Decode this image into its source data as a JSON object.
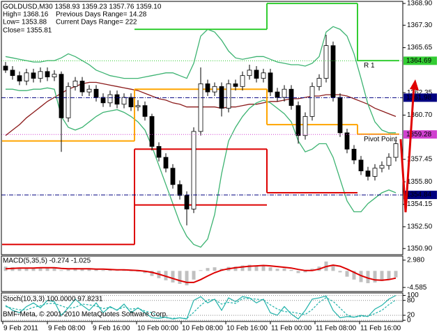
{
  "chart_data": [
    {
      "type": "candlestick",
      "title": "GOLDUSD,M30  1358.93 1359.23 1357.76 1359.10",
      "info": [
        "High= 1368.16",
        "Low= 1353.88",
        "Close= 1355.81",
        "Previous Days Range= 14.28",
        "Current Days Range= 222"
      ],
      "open": [
        1364.3,
        1364.0,
        1363.6,
        1363.2,
        1363.8,
        1363.4,
        1363.9,
        1363.5,
        1363.7,
        1360.5,
        1362.8,
        1363.2,
        1362.4,
        1362.6,
        1362.0,
        1361.6,
        1362.2,
        1361.5,
        1362.0,
        1361.3,
        1361.4,
        1360.6,
        1358.4,
        1357.6,
        1356.8,
        1355.6,
        1354.8,
        1353.8,
        1359.5,
        1363.0,
        1362.4,
        1362.8,
        1361.2,
        1363.0,
        1362.8,
        1363.6,
        1364.0,
        1363.4,
        1363.8,
        1362.4,
        1362.0,
        1362.6,
        1361.4,
        1359.2,
        1360.6,
        1362.8,
        1363.4,
        1365.8,
        1362.0,
        1359.4,
        1358.2,
        1357.4,
        1356.6,
        1356.2,
        1356.8,
        1357.0,
        1357.6
      ],
      "high": [
        1364.6,
        1364.3,
        1363.9,
        1364.1,
        1364.1,
        1364.2,
        1364.2,
        1364.0,
        1363.9,
        1363.1,
        1363.5,
        1363.5,
        1362.9,
        1362.9,
        1362.3,
        1362.5,
        1362.5,
        1362.3,
        1362.3,
        1361.8,
        1361.7,
        1360.8,
        1358.7,
        1357.9,
        1357.1,
        1355.9,
        1355.1,
        1359.8,
        1364.2,
        1363.3,
        1363.1,
        1363.1,
        1363.3,
        1363.3,
        1363.9,
        1364.4,
        1364.3,
        1364.1,
        1364.1,
        1362.7,
        1362.9,
        1362.9,
        1361.7,
        1360.9,
        1363.1,
        1363.7,
        1366.6,
        1366.1,
        1362.3,
        1359.7,
        1358.5,
        1357.7,
        1356.9,
        1357.1,
        1357.3,
        1357.9,
        1358.9
      ],
      "low": [
        1363.8,
        1363.3,
        1362.9,
        1362.9,
        1363.1,
        1363.1,
        1363.2,
        1363.2,
        1358.0,
        1360.2,
        1362.5,
        1362.1,
        1362.1,
        1361.7,
        1361.3,
        1361.3,
        1361.2,
        1361.2,
        1361.0,
        1361.0,
        1360.3,
        1358.1,
        1357.3,
        1356.5,
        1355.3,
        1354.5,
        1352.6,
        1353.5,
        1359.2,
        1362.1,
        1362.1,
        1360.6,
        1360.9,
        1362.5,
        1362.5,
        1363.3,
        1363.1,
        1363.1,
        1362.1,
        1361.7,
        1361.7,
        1361.1,
        1358.6,
        1358.9,
        1360.3,
        1362.5,
        1363.1,
        1361.7,
        1359.1,
        1357.9,
        1357.1,
        1356.3,
        1355.9,
        1355.9,
        1356.5,
        1356.7,
        1357.3
      ],
      "close": [
        1364.0,
        1363.6,
        1363.2,
        1363.8,
        1363.4,
        1363.9,
        1363.5,
        1363.7,
        1360.5,
        1362.8,
        1363.2,
        1362.4,
        1362.6,
        1362.0,
        1361.6,
        1362.2,
        1361.5,
        1362.0,
        1361.3,
        1361.4,
        1360.6,
        1358.4,
        1357.6,
        1356.8,
        1355.6,
        1354.8,
        1353.8,
        1359.5,
        1363.0,
        1362.4,
        1362.8,
        1361.2,
        1363.0,
        1362.8,
        1363.6,
        1364.0,
        1363.4,
        1363.8,
        1362.4,
        1362.0,
        1362.6,
        1361.4,
        1359.2,
        1360.6,
        1362.8,
        1363.4,
        1365.8,
        1362.0,
        1359.4,
        1358.2,
        1357.4,
        1356.6,
        1356.2,
        1356.8,
        1357.0,
        1357.6,
        1358.6
      ],
      "up_color": "#ffffff",
      "down_color": "#000000",
      "xlim": [
        -0.6,
        56.9
      ],
      "xticks": [
        {
          "value": -0.4,
          "label": "9 Feb 2011"
        },
        {
          "value": 6.0,
          "label": "9 Feb 08:00"
        },
        {
          "value": 12.4,
          "label": "9 Feb 16:00"
        },
        {
          "value": 18.8,
          "label": "10 Feb 00:00"
        },
        {
          "value": 25.2,
          "label": "10 Feb 08:00"
        },
        {
          "value": 31.6,
          "label": "10 Feb 16:00"
        },
        {
          "value": 38.0,
          "label": "11 Feb 00:00"
        },
        {
          "value": 44.4,
          "label": "11 Feb 08:00"
        },
        {
          "value": 50.8,
          "label": "11 Feb 16:00"
        }
      ],
      "ylim": [
        1350.45,
        1369.05
      ],
      "yticks": [
        {
          "value": 1368.9,
          "label": "1368.90"
        },
        {
          "value": 1367.3,
          "label": "1367.30"
        },
        1365.65,
        1362.35,
        {
          "value": 1360.7,
          "label": "1360.70"
        },
        1357.45,
        {
          "value": 1355.8,
          "label": "1355.80"
        },
        1354.15,
        {
          "value": 1352.5,
          "label": "1352.50"
        },
        {
          "value": 1350.9,
          "label": "1350.90"
        }
      ],
      "grid": false,
      "series": [
        {
          "color": "#8b1a1a",
          "style": "solid",
          "values": [
            1359.2,
            1359.6,
            1360.0,
            1360.5,
            1360.9,
            1361.3,
            1361.7,
            1362.0,
            1362.3,
            1362.6,
            1362.8,
            1363.0,
            1363.1,
            1363.1,
            1363.0,
            1362.9,
            1362.8,
            1362.7,
            1362.6,
            1362.5,
            1362.3,
            1362.1,
            1361.9,
            1361.8,
            1361.6,
            1361.5,
            1361.3,
            1361.3,
            1361.3,
            1361.3,
            1361.3,
            1361.2,
            1361.3,
            1361.3,
            1361.4,
            1361.5,
            1361.5,
            1361.6,
            1361.7,
            1361.7,
            1361.8,
            1361.9,
            1361.9,
            1362.0,
            1362.1,
            1362.1,
            1362.2,
            1362.2,
            1362.2,
            1362.1,
            1361.9,
            1361.7,
            1361.5,
            1361.2,
            1361.0,
            1360.8,
            1360.6
          ]
        },
        {
          "color": "#3cb371",
          "style": "solid",
          "values": [
            1365.0,
            1364.9,
            1364.8,
            1364.7,
            1364.6,
            1364.6,
            1364.7,
            1364.7,
            1364.9,
            1365.2,
            1365.0,
            1364.7,
            1364.4,
            1364.0,
            1363.8,
            1363.6,
            1363.5,
            1363.4,
            1363.4,
            1363.4,
            1363.5,
            1363.6,
            1363.7,
            1363.8,
            1363.8,
            1363.6,
            1363.4,
            1364.5,
            1366.5,
            1367.0,
            1366.8,
            1366.2,
            1365.4,
            1364.9,
            1364.8,
            1364.9,
            1365.0,
            1365.0,
            1364.8,
            1364.6,
            1364.5,
            1364.4,
            1364.4,
            1364.3,
            1364.5,
            1365.0,
            1366.8,
            1367.2,
            1367.0,
            1366.5,
            1365.2,
            1363.4,
            1361.5,
            1360.2,
            1359.6,
            1359.4,
            1359.4
          ]
        },
        {
          "color": "#3cb371",
          "style": "solid",
          "values": [
            1362.6,
            1362.6,
            1362.5,
            1362.5,
            1362.6,
            1362.6,
            1362.7,
            1362.6,
            1360.6,
            1359.8,
            1359.6,
            1359.8,
            1360.2,
            1360.6,
            1360.9,
            1361.0,
            1361.1,
            1360.9,
            1360.6,
            1360.2,
            1359.6,
            1358.4,
            1357.0,
            1355.6,
            1354.2,
            1352.8,
            1351.8,
            1351.2,
            1351.0,
            1351.6,
            1353.4,
            1356.4,
            1358.8,
            1359.8,
            1360.6,
            1361.2,
            1361.6,
            1361.8,
            1361.6,
            1361.2,
            1360.8,
            1360.2,
            1358.8,
            1358.0,
            1358.2,
            1358.6,
            1358.6,
            1357.6,
            1356.0,
            1354.4,
            1353.6,
            1353.6,
            1354.2,
            1354.6,
            1355.0,
            1355.2,
            1355.0
          ]
        },
        {
          "color": "#ffa500",
          "style": "step",
          "values": [
            1358.8,
            1358.8,
            1358.8,
            1358.8,
            1358.8,
            1358.8,
            1358.8,
            1358.8,
            1358.8,
            1358.8,
            1358.8,
            1358.8,
            1358.8,
            1358.8,
            1358.8,
            1358.8,
            1358.8,
            1358.8,
            1358.8,
            1362.6,
            1362.6,
            1362.6,
            1362.6,
            1362.6,
            1362.6,
            1362.6,
            1362.6,
            1362.6,
            1362.6,
            1362.6,
            1362.6,
            1362.6,
            1362.6,
            1362.6,
            1362.6,
            1362.6,
            1362.6,
            1362.6,
            1360.0,
            1360.0,
            1360.0,
            1360.0,
            1360.0,
            1360.0,
            1360.0,
            1360.0,
            1360.0,
            1360.0,
            1360.0,
            1360.0,
            1360.0,
            1359.3,
            1359.3,
            1359.3,
            1359.3,
            1359.3,
            1359.3
          ]
        },
        {
          "color": "#dd0000",
          "style": "step",
          "values": [
            1351.2,
            1351.2,
            1351.2,
            1351.2,
            1351.2,
            1351.2,
            1351.2,
            1351.2,
            1351.2,
            1351.2,
            1351.2,
            1351.2,
            1351.2,
            1351.2,
            1351.2,
            1351.2,
            1351.2,
            1351.2,
            1351.2,
            1358.2,
            1358.2,
            1358.2,
            1358.2,
            1358.2,
            1358.2,
            1358.2,
            1358.2,
            1358.2,
            1358.2,
            1358.2,
            1358.2,
            1358.2,
            1358.2,
            1358.2,
            1358.2,
            1358.2,
            1358.2,
            1358.2,
            1355.0,
            1355.0,
            1355.0,
            1355.0,
            1355.0,
            1355.0,
            1355.0,
            1355.0,
            1355.0,
            1355.0,
            1355.0,
            1355.0,
            1355.0,
            null,
            null,
            null,
            null,
            null,
            null
          ]
        },
        {
          "color": "#dd0000",
          "style": "step",
          "values": [
            null,
            null,
            null,
            null,
            null,
            null,
            null,
            null,
            null,
            null,
            null,
            null,
            null,
            null,
            null,
            null,
            null,
            null,
            null,
            1354.1,
            1354.1,
            1354.1,
            1354.1,
            1354.1,
            1354.1,
            1354.1,
            1354.1,
            1354.1,
            1354.1,
            1354.1,
            1354.1,
            1354.1,
            1354.1,
            1354.1,
            1354.1,
            1354.1,
            1354.1,
            1354.1,
            null,
            null,
            null,
            null,
            null,
            null,
            null,
            null,
            null,
            null,
            null,
            null,
            null,
            null,
            null,
            null,
            null,
            null,
            null
          ]
        },
        {
          "color": "#32cd32",
          "style": "step",
          "values": [
            null,
            null,
            null,
            null,
            null,
            null,
            null,
            null,
            null,
            null,
            null,
            null,
            null,
            null,
            null,
            null,
            null,
            null,
            null,
            1367.0,
            1367.0,
            1367.0,
            1367.0,
            1367.0,
            1367.0,
            1367.0,
            1367.0,
            1367.0,
            1367.0,
            1367.0,
            1367.0,
            1367.0,
            1367.0,
            1367.0,
            1367.0,
            1367.0,
            1367.0,
            1367.0,
            1368.9,
            1368.9,
            1368.9,
            1368.9,
            1368.9,
            1368.9,
            1368.9,
            1368.9,
            1368.9,
            1368.9,
            1368.9,
            1368.9,
            1368.9,
            1364.7,
            1364.7,
            1364.7,
            1364.7,
            1364.7,
            1364.7
          ]
        }
      ],
      "levels": [
        {
          "value": 1364.69,
          "color": "#33cc33",
          "text_color": "#000000",
          "line": "dot",
          "label": "R 1",
          "label_color": "#9acd32"
        },
        {
          "value": 1361.98,
          "color": "#000080",
          "text_color": "#ffffff",
          "line": "dashdot"
        },
        {
          "value": 1359.28,
          "color": "#d040d0",
          "text_color": "#ffffff",
          "line": "dot",
          "label": "Pivot Point",
          "label_color": "#ffa500"
        },
        {
          "value": 1354.84,
          "color": "#000080",
          "text_color": "#ffffff",
          "line": "dashdot"
        }
      ]
    },
    {
      "type": "macd",
      "title": "MACD(5,35,5) -0.274 -1.025",
      "ylim": [
        -5.72,
        4.11
      ],
      "yticks": [
        {
          "value": 2.98,
          "label": "2.980"
        },
        -4.585
      ],
      "grid": false,
      "histogram": {
        "color": "#c0c0c0",
        "values": [
          1.2,
          1.0,
          0.8,
          0.9,
          0.8,
          1.0,
          0.9,
          1.0,
          0.2,
          0.4,
          0.8,
          0.7,
          0.6,
          0.4,
          0.2,
          0.3,
          0.1,
          0.2,
          -0.1,
          -0.2,
          -0.6,
          -1.4,
          -2.0,
          -2.6,
          -3.2,
          -3.6,
          -4.0,
          -2.4,
          0.2,
          0.8,
          1.0,
          0.6,
          1.1,
          1.2,
          1.5,
          1.7,
          1.5,
          1.6,
          1.0,
          0.6,
          0.7,
          0.3,
          -0.6,
          -0.4,
          0.6,
          1.2,
          2.6,
          1.4,
          -0.4,
          -1.6,
          -2.4,
          -3.1,
          -3.4,
          -3.2,
          -2.8,
          -2.4,
          -1.8
        ]
      },
      "series": [
        {
          "color": "#dd0000",
          "style": "solid",
          "values": [
            0.6,
            0.7,
            0.8,
            0.8,
            0.8,
            0.9,
            0.9,
            0.9,
            0.7,
            0.6,
            0.6,
            0.6,
            0.6,
            0.5,
            0.5,
            0.4,
            0.3,
            0.3,
            0.2,
            0.1,
            -0.1,
            -0.4,
            -0.9,
            -1.5,
            -2.1,
            -2.7,
            -3.2,
            -3.2,
            -2.4,
            -1.4,
            -0.5,
            0.2,
            0.6,
            0.9,
            1.1,
            1.3,
            1.4,
            1.5,
            1.4,
            1.2,
            1.0,
            0.8,
            0.4,
            0.1,
            0.1,
            0.5,
            1.2,
            1.6,
            1.3,
            0.5,
            -0.4,
            -1.3,
            -2.0,
            -2.5,
            -2.6,
            -2.4,
            -2.0
          ]
        }
      ]
    },
    {
      "type": "stochastic",
      "title": "Stoch(10,3,3) 100.0000 97.8231",
      "copyright": "BMF-Meta, © 2001-2010 MetaQuotes Software Corp.",
      "ylim": [
        -5,
        110
      ],
      "yticks": [
        100,
        80,
        20,
        0
      ],
      "grid": true,
      "series": [
        {
          "color": "#20b2aa",
          "style": "solid",
          "values": [
            60,
            40,
            30,
            55,
            70,
            50,
            80,
            75,
            20,
            50,
            85,
            60,
            40,
            70,
            30,
            55,
            40,
            65,
            30,
            50,
            30,
            10,
            8,
            12,
            5,
            10,
            5,
            80,
            95,
            70,
            85,
            40,
            90,
            75,
            95,
            90,
            70,
            85,
            30,
            20,
            55,
            25,
            5,
            40,
            85,
            90,
            98,
            40,
            10,
            15,
            12,
            20,
            15,
            45,
            60,
            85,
            100
          ]
        },
        {
          "color": "#20b2aa",
          "style": "dash",
          "values": [
            55,
            48,
            42,
            42,
            52,
            58,
            67,
            68,
            58,
            48,
            52,
            65,
            62,
            57,
            47,
            52,
            42,
            53,
            45,
            48,
            37,
            30,
            16,
            10,
            8,
            9,
            7,
            32,
            60,
            82,
            83,
            65,
            72,
            68,
            87,
            87,
            85,
            82,
            62,
            45,
            35,
            33,
            28,
            23,
            43,
            72,
            91,
            76,
            49,
            22,
            12,
            16,
            16,
            27,
            40,
            63,
            82
          ]
        }
      ]
    }
  ]
}
